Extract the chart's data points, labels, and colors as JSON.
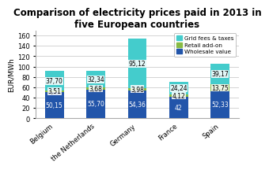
{
  "title": "Comparison of electricity prices paid in 2013 in\nfive European countries",
  "categories": [
    "Belgium",
    "the Netherlands",
    "Germany",
    "France",
    "Spain"
  ],
  "wholesale": [
    50.15,
    55.7,
    54.36,
    42.0,
    52.33
  ],
  "retail": [
    3.51,
    3.68,
    3.98,
    4.12,
    13.75
  ],
  "grid": [
    37.7,
    32.34,
    95.12,
    24.24,
    39.17
  ],
  "wholesale_labels": [
    "50,15",
    "55,70",
    "54,36",
    "42",
    "52,33"
  ],
  "retail_labels": [
    "3,51",
    "3,68",
    "3,98",
    "4,12",
    "13,75"
  ],
  "grid_labels": [
    "37,70",
    "32,34",
    "95,12",
    "24,24",
    "39,17"
  ],
  "wholesale_color": "#2255aa",
  "retail_color": "#88bb44",
  "grid_color": "#44cccc",
  "ylabel": "EUR/MWh",
  "ylim": [
    0,
    170
  ],
  "yticks": [
    0,
    20,
    40,
    60,
    80,
    100,
    120,
    140,
    160
  ],
  "legend_labels": [
    "Grid fees & taxes",
    "Retail add-on",
    "Wholesale value"
  ],
  "background_color": "#ffffff",
  "plot_bg_color": "#ffffff",
  "title_fontsize": 8.5,
  "axis_fontsize": 6.5,
  "bar_value_fontsize": 5.5,
  "bar_width": 0.45
}
